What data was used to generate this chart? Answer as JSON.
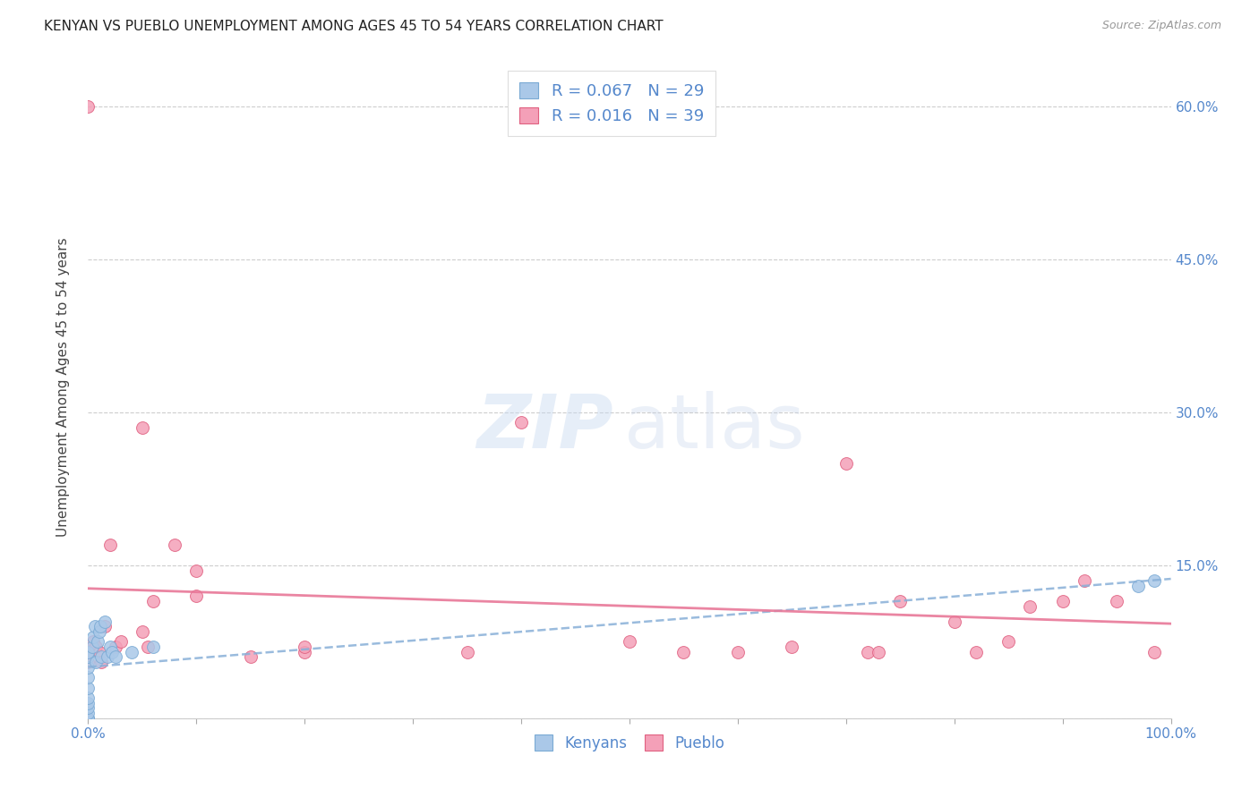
{
  "title": "KENYAN VS PUEBLO UNEMPLOYMENT AMONG AGES 45 TO 54 YEARS CORRELATION CHART",
  "source": "Source: ZipAtlas.com",
  "ylabel": "Unemployment Among Ages 45 to 54 years",
  "xlim": [
    0.0,
    1.0
  ],
  "ylim": [
    0.0,
    0.65
  ],
  "y_ticks": [
    0.0,
    0.15,
    0.3,
    0.45,
    0.6
  ],
  "background_color": "#ffffff",
  "grid_color": "#c8c8c8",
  "kenyan_color": "#aac8e8",
  "pueblo_color": "#f4a0b8",
  "kenyan_edge_color": "#7aaad4",
  "pueblo_edge_color": "#e06080",
  "kenyan_trend_color": "#88b0d8",
  "pueblo_trend_color": "#e87898",
  "kenyan_R": 0.067,
  "kenyan_N": 29,
  "pueblo_R": 0.016,
  "pueblo_N": 39,
  "kenyan_x": [
    0.0,
    0.0,
    0.0,
    0.0,
    0.0,
    0.0,
    0.0,
    0.0,
    0.0,
    0.0,
    0.0,
    0.0,
    0.004,
    0.005,
    0.006,
    0.007,
    0.009,
    0.01,
    0.011,
    0.012,
    0.015,
    0.018,
    0.02,
    0.022,
    0.025,
    0.04,
    0.06,
    0.97,
    0.985
  ],
  "kenyan_y": [
    0.0,
    0.0,
    0.0,
    0.005,
    0.01,
    0.015,
    0.02,
    0.03,
    0.04,
    0.05,
    0.06,
    0.065,
    0.07,
    0.08,
    0.09,
    0.055,
    0.075,
    0.085,
    0.09,
    0.06,
    0.095,
    0.06,
    0.07,
    0.065,
    0.06,
    0.065,
    0.07,
    0.13,
    0.135
  ],
  "pueblo_x": [
    0.0,
    0.0,
    0.0,
    0.005,
    0.007,
    0.01,
    0.012,
    0.015,
    0.02,
    0.025,
    0.03,
    0.05,
    0.05,
    0.055,
    0.06,
    0.08,
    0.1,
    0.1,
    0.15,
    0.2,
    0.2,
    0.35,
    0.4,
    0.5,
    0.55,
    0.6,
    0.65,
    0.7,
    0.72,
    0.73,
    0.75,
    0.8,
    0.82,
    0.85,
    0.87,
    0.9,
    0.92,
    0.95,
    0.985
  ],
  "pueblo_y": [
    0.055,
    0.065,
    0.6,
    0.075,
    0.07,
    0.065,
    0.055,
    0.09,
    0.17,
    0.07,
    0.075,
    0.285,
    0.085,
    0.07,
    0.115,
    0.17,
    0.145,
    0.12,
    0.06,
    0.065,
    0.07,
    0.065,
    0.29,
    0.075,
    0.065,
    0.065,
    0.07,
    0.25,
    0.065,
    0.065,
    0.115,
    0.095,
    0.065,
    0.075,
    0.11,
    0.115,
    0.135,
    0.115,
    0.065
  ],
  "legend_label_kenyan": "Kenyans",
  "legend_label_pueblo": "Pueblo",
  "tick_color": "#5588cc",
  "marker_size": 100,
  "x_tick_positions": [
    0.0,
    0.1,
    0.2,
    0.3,
    0.4,
    0.5,
    0.6,
    0.7,
    0.8,
    0.9,
    1.0
  ]
}
